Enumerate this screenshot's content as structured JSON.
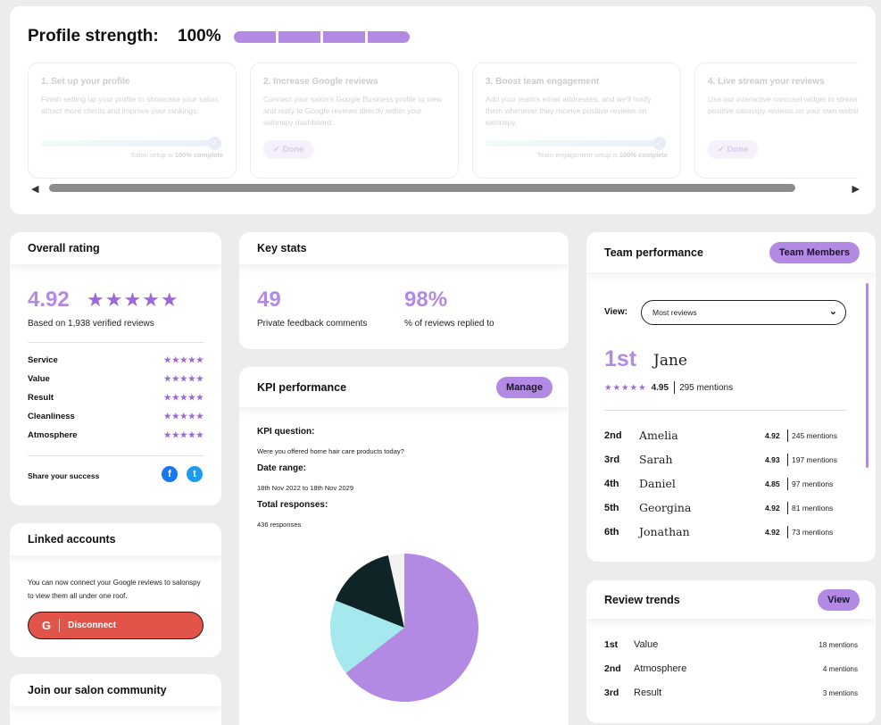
{
  "profile": {
    "title": "Profile strength:",
    "value": "100%",
    "progress_segments": 4,
    "progress_filled": 4,
    "steps": [
      {
        "title": "1. Set up your profile",
        "desc": "Finish setting up your profile to showcase your salon, attract more clients and improve your rankings.",
        "note_prefix": "Salon setup is ",
        "note_strong": "100% complete",
        "progress": 1.0
      },
      {
        "title": "2. Increase Google reviews",
        "desc": "Connect your salon's Google Business profile to view and reply to Google reviews directly within your salonspy dashboard.",
        "done_label": "✓ Done"
      },
      {
        "title": "3. Boost team engagement",
        "desc": "Add your team's email addresses, and we'll notify them whenever they receive positive reviews on salonspy.",
        "note_prefix": "Team engagement setup is ",
        "note_strong": "100% complete",
        "progress": 1.0
      },
      {
        "title": "4. Live stream your reviews",
        "desc": "Use our interactive carousel widget to stream your positive salonspy reviews on your own website.",
        "done_label": "✓ Done"
      }
    ]
  },
  "overall": {
    "title": "Overall rating",
    "rating": "4.92",
    "stars": "★★★★★",
    "based_on": "Based on 1,938 verified reviews",
    "categories": [
      {
        "label": "Service",
        "stars": "★★★★★"
      },
      {
        "label": "Value",
        "stars": "★★★★★"
      },
      {
        "label": "Result",
        "stars": "★★★★★"
      },
      {
        "label": "Cleanliness",
        "stars": "★★★★★"
      },
      {
        "label": "Atmosphere",
        "stars": "★★★★★"
      }
    ],
    "share_label": "Share your success",
    "facebook_icon": "f",
    "twitter_icon": "t"
  },
  "linked": {
    "title": "Linked accounts",
    "text": "You can now connect your Google reviews to salonspy to view them all under one roof.",
    "button_icon": "G",
    "button_label": "Disconnect"
  },
  "join": {
    "title": "Join our salon community"
  },
  "keystats": {
    "title": "Key stats",
    "stat1_value": "49",
    "stat1_label": "Private feedback comments",
    "stat2_value": "98%",
    "stat2_label": "% of reviews replied to"
  },
  "kpi": {
    "title": "KPI performance",
    "manage_label": "Manage",
    "question_label": "KPI question:",
    "question_value": "Were you offered home hair care products today?",
    "date_label": "Date range:",
    "date_value": "18th Nov 2022 to 18th Nov 2029",
    "total_label": "Total responses:",
    "total_value": "436 responses",
    "chart_data": {
      "type": "pie",
      "slices": [
        {
          "share": 0.645,
          "color": "#b38ae3"
        },
        {
          "share": 0.165,
          "color": "#a5e8ee"
        },
        {
          "share": 0.155,
          "color": "#0e2426"
        },
        {
          "share": 0.035,
          "color": "#f2f2f2"
        }
      ]
    }
  },
  "team": {
    "title": "Team performance",
    "members_label": "Team Members",
    "view_label": "View:",
    "select_value": "Most reviews",
    "first": {
      "rank": "1st",
      "name": "Jane",
      "stars": "★★★★★",
      "score": "4.95",
      "mentions": "295 mentions"
    },
    "rows": [
      {
        "rank": "2nd",
        "name": "Amelia",
        "score": "4.92",
        "mentions": "245 mentions"
      },
      {
        "rank": "3rd",
        "name": "Sarah",
        "score": "4.93",
        "mentions": "197 mentions"
      },
      {
        "rank": "4th",
        "name": "Daniel",
        "score": "4.85",
        "mentions": "97 mentions"
      },
      {
        "rank": "5th",
        "name": "Georgina",
        "score": "4.92",
        "mentions": "81 mentions"
      },
      {
        "rank": "6th",
        "name": "Jonathan",
        "score": "4.92",
        "mentions": "73 mentions"
      }
    ]
  },
  "trends": {
    "title": "Review trends",
    "view_label": "View",
    "rows": [
      {
        "rank": "1st",
        "name": "Value",
        "mentions": "18 mentions"
      },
      {
        "rank": "2nd",
        "name": "Atmosphere",
        "mentions": "4 mentions"
      },
      {
        "rank": "3rd",
        "name": "Result",
        "mentions": "3 mentions"
      }
    ]
  },
  "colors": {
    "accent": "#b38ae3",
    "star": "#9b6ad6",
    "danger": "#e25349",
    "facebook": "#1877f2",
    "twitter": "#1d9bf0"
  }
}
